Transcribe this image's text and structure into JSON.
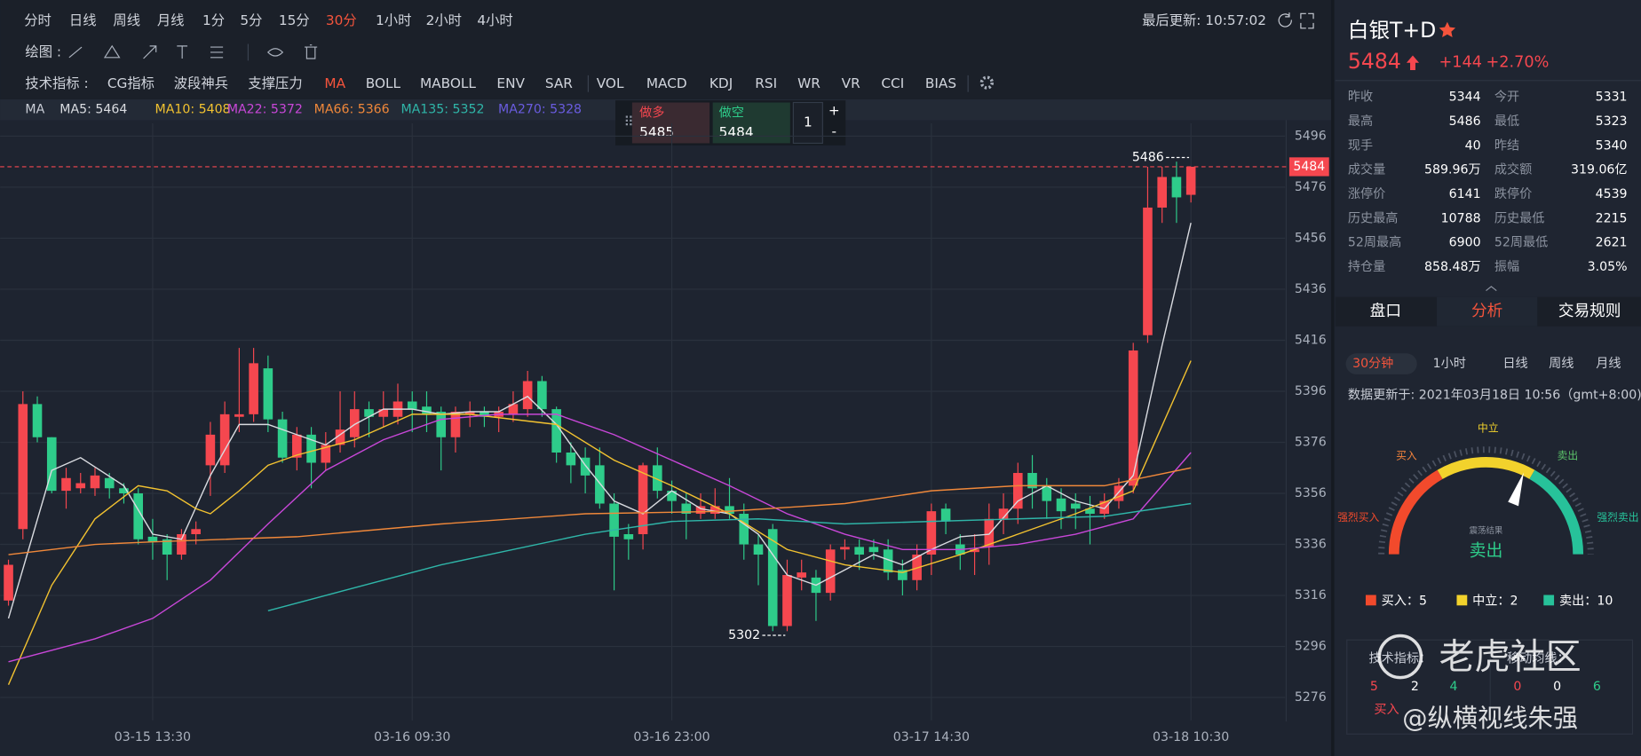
{
  "toolbar": {
    "periods": [
      "分时",
      "日线",
      "周线",
      "月线",
      "1分",
      "5分",
      "15分",
      "30分",
      "1小时",
      "2小时",
      "4小时"
    ],
    "last_update": "最后更新: 10:57:02",
    "draw_label": "绘图 :",
    "indicator_label": "技术指标 :",
    "indicators": [
      "CG指标",
      "波段神兵",
      "支撑压力",
      "MA",
      "BOLL",
      "MABOLL",
      "ENV",
      "SAR",
      "VOL",
      "MACD",
      "KDJ",
      "RSI",
      "WR",
      "VR",
      "CCI",
      "BIAS"
    ]
  },
  "trade": {
    "long_label": "做多",
    "long_price": "5485",
    "short_label": "做空",
    "short_price": "5484",
    "qty": "1",
    "plus": "+",
    "minus": "-"
  },
  "chart_data": {
    "type": "candlestick",
    "ma_label": "MA",
    "categories": [
      null,
      null,
      null,
      null,
      null,
      null,
      null,
      null,
      null,
      null,
      "03-15 13:30",
      null,
      null,
      null,
      null,
      null,
      null,
      null,
      null,
      null,
      null,
      null,
      null,
      null,
      null,
      null,
      null,
      null,
      "03-16 09:30",
      null,
      null,
      null,
      null,
      null,
      null,
      null,
      null,
      null,
      null,
      null,
      null,
      null,
      null,
      null,
      null,
      null,
      "03-16 23:00",
      null,
      null,
      null,
      null,
      null,
      null,
      null,
      null,
      null,
      null,
      null,
      null,
      null,
      null,
      null,
      null,
      null,
      "03-17 14:30",
      null,
      null,
      null,
      null,
      null,
      null,
      null,
      null,
      null,
      null,
      null,
      null,
      null,
      null,
      null,
      null,
      null,
      "03-18 10:30"
    ],
    "open": [
      5314,
      5342,
      5391,
      5378,
      5357,
      5358,
      5358,
      5362,
      5358,
      5356,
      5339,
      5338,
      5332,
      5340,
      5367,
      5367,
      5386,
      5387,
      5405,
      5385,
      5370,
      5379,
      5368,
      5375,
      5378,
      5389,
      5386,
      5386,
      5392,
      5390,
      5388,
      5378,
      5387,
      5388,
      5386,
      5387,
      5389,
      5400,
      5389,
      5372,
      5370,
      5367,
      5352,
      5340,
      5340,
      5367,
      5357,
      5352,
      5348,
      5348,
      5351,
      5348,
      5336,
      5342,
      5304,
      5323,
      5323,
      5317,
      5334,
      5335,
      5335,
      5334,
      5326,
      5322,
      5332,
      5350,
      5336,
      5333,
      5335,
      5346,
      5350,
      5364,
      5359,
      5354,
      5352,
      5350,
      5348,
      5353,
      5359,
      5418,
      5468,
      5480,
      5473
    ],
    "high": [
      5330,
      5396,
      5394,
      5378,
      5366,
      5364,
      5366,
      5364,
      5360,
      5358,
      5346,
      5340,
      5342,
      5345,
      5384,
      5392,
      5413,
      5413,
      5410,
      5388,
      5382,
      5382,
      5380,
      5396,
      5396,
      5392,
      5396,
      5399,
      5396,
      5396,
      5390,
      5390,
      5392,
      5390,
      5390,
      5396,
      5404,
      5402,
      5390,
      5376,
      5374,
      5374,
      5356,
      5344,
      5368,
      5374,
      5361,
      5356,
      5356,
      5358,
      5362,
      5352,
      5340,
      5344,
      5330,
      5330,
      5326,
      5336,
      5338,
      5338,
      5338,
      5338,
      5330,
      5336,
      5352,
      5352,
      5340,
      5340,
      5352,
      5356,
      5368,
      5371,
      5362,
      5358,
      5356,
      5355,
      5356,
      5362,
      5415,
      5484,
      5484,
      5486,
      5484
    ],
    "low": [
      5312,
      5338,
      5376,
      5356,
      5350,
      5356,
      5355,
      5354,
      5352,
      5336,
      5330,
      5322,
      5330,
      5336,
      5355,
      5364,
      5380,
      5384,
      5380,
      5368,
      5365,
      5358,
      5365,
      5372,
      5374,
      5378,
      5382,
      5383,
      5380,
      5380,
      5365,
      5372,
      5382,
      5382,
      5380,
      5384,
      5386,
      5386,
      5368,
      5360,
      5356,
      5350,
      5318,
      5330,
      5334,
      5354,
      5348,
      5338,
      5346,
      5346,
      5346,
      5330,
      5320,
      5302,
      5302,
      5318,
      5306,
      5314,
      5330,
      5326,
      5330,
      5322,
      5316,
      5318,
      5324,
      5340,
      5326,
      5324,
      5328,
      5340,
      5344,
      5350,
      5346,
      5342,
      5342,
      5336,
      5346,
      5350,
      5356,
      5415,
      5462,
      5462,
      5470
    ],
    "close": [
      5328,
      5391,
      5378,
      5357,
      5362,
      5360,
      5363,
      5358,
      5356,
      5338,
      5337,
      5332,
      5340,
      5342,
      5379,
      5387,
      5387,
      5407,
      5385,
      5370,
      5379,
      5368,
      5375,
      5381,
      5389,
      5386,
      5389,
      5392,
      5389,
      5387,
      5378,
      5388,
      5388,
      5386,
      5388,
      5391,
      5400,
      5389,
      5372,
      5367,
      5363,
      5352,
      5339,
      5338,
      5367,
      5357,
      5353,
      5348,
      5351,
      5351,
      5348,
      5336,
      5332,
      5304,
      5324,
      5325,
      5317,
      5334,
      5335,
      5332,
      5333,
      5325,
      5322,
      5332,
      5349,
      5345,
      5332,
      5334,
      5346,
      5350,
      5364,
      5358,
      5353,
      5349,
      5350,
      5348,
      5353,
      5359,
      5412,
      5468,
      5480,
      5472,
      5484
    ],
    "up_color": "#f5474f",
    "down_color": "#2ecc8a",
    "lines": [
      {
        "name": "MA5: 5464",
        "color": "#d9dbe0",
        "x": [
          0,
          3,
          5,
          8,
          10,
          12,
          14,
          16,
          18,
          20,
          22,
          24,
          26,
          28,
          30,
          32,
          34,
          36,
          38,
          40,
          42,
          44,
          46,
          48,
          50,
          52,
          54,
          56,
          58,
          60,
          62,
          64,
          66,
          68,
          70,
          72,
          74,
          76,
          78,
          80,
          82
        ],
        "values": [
          5307,
          5365,
          5370,
          5359,
          5340,
          5338,
          5363,
          5383,
          5383,
          5379,
          5375,
          5383,
          5389,
          5389,
          5387,
          5388,
          5388,
          5394,
          5383,
          5367,
          5353,
          5348,
          5357,
          5350,
          5348,
          5340,
          5324,
          5320,
          5326,
          5332,
          5328,
          5334,
          5339,
          5340,
          5353,
          5359,
          5353,
          5350,
          5363,
          5414,
          5462
        ]
      },
      {
        "name": "MA10: 5408",
        "color": "#f2c230",
        "x": [
          0,
          3,
          6,
          9,
          11,
          13,
          14,
          16,
          18,
          20,
          24,
          28,
          32,
          35,
          38,
          42,
          46,
          50,
          54,
          58,
          62,
          66,
          70,
          74,
          78,
          82
        ],
        "values": [
          5281,
          5320,
          5346,
          5359,
          5357,
          5350,
          5348,
          5357,
          5367,
          5371,
          5377,
          5387,
          5387,
          5385,
          5383,
          5369,
          5359,
          5348,
          5334,
          5328,
          5325,
          5332,
          5340,
          5348,
          5357,
          5408
        ]
      },
      {
        "name": "MA22: 5372",
        "color": "#c847d8",
        "x": [
          0,
          6,
          10,
          14,
          18,
          22,
          26,
          30,
          34,
          38,
          42,
          46,
          50,
          54,
          58,
          62,
          66,
          70,
          74,
          78,
          82
        ],
        "values": [
          5290,
          5299,
          5307,
          5322,
          5344,
          5365,
          5377,
          5385,
          5387,
          5387,
          5379,
          5369,
          5359,
          5348,
          5340,
          5334,
          5334,
          5336,
          5340,
          5346,
          5372
        ]
      },
      {
        "name": "MA66: 5366",
        "color": "#f0883a",
        "x": [
          0,
          6,
          10,
          20,
          30,
          40,
          50,
          58,
          64,
          70,
          76,
          82
        ],
        "values": [
          5332,
          5336,
          5337,
          5339,
          5344,
          5348,
          5349,
          5352,
          5357,
          5359,
          5359,
          5366
        ]
      },
      {
        "name": "MA135: 5352",
        "color": "#2fb5a8",
        "x": [
          18,
          30,
          40,
          46,
          52,
          58,
          64,
          70,
          76,
          82
        ],
        "values": [
          5310,
          5328,
          5340,
          5345,
          5346,
          5344,
          5345,
          5346,
          5347,
          5352
        ]
      },
      {
        "name": "MA270: 5328",
        "color": "#6a5ce0"
      }
    ],
    "ylim": [
      5267,
      5501
    ],
    "yticks": [
      5276,
      5296,
      5316,
      5336,
      5356,
      5376,
      5396,
      5416,
      5436,
      5456,
      5476,
      5496
    ],
    "grid": true,
    "last_price": 5484,
    "high_label": 5486,
    "low_label": 5302
  },
  "quote": {
    "name": "白银T+D",
    "price": 5484,
    "change": "+144",
    "change_pct": "+2.70%",
    "stats": [
      [
        "昨收",
        "5344",
        "今开",
        "5331"
      ],
      [
        "最高",
        "5486",
        "最低",
        "5323"
      ],
      [
        "现手",
        "40",
        "昨结",
        "5340"
      ],
      [
        "成交量",
        "589.96万",
        "成交额",
        "319.06亿"
      ],
      [
        "涨停价",
        "6141",
        "跌停价",
        "4539"
      ],
      [
        "历史最高",
        "10788",
        "历史最低",
        "2215"
      ],
      [
        "52周最高",
        "6900",
        "52周最低",
        "2621"
      ],
      [
        "持仓量",
        "858.48万",
        "振幅",
        "3.05%"
      ]
    ]
  },
  "tabs": [
    "盘口",
    "分析",
    "交易规则"
  ],
  "analysis": {
    "periods": [
      "30分钟",
      "1小时",
      "日线",
      "周线",
      "月线"
    ],
    "updated": "数据更新于: 2021年03月18日 10:56（gmt+8:00)",
    "gauge_labels": [
      "强烈买入",
      "买入",
      "中立",
      "卖出",
      "强烈卖出"
    ],
    "gauge_caption": "震荡结果",
    "gauge_result": "卖出",
    "counts": [
      "买入：5",
      "中立：2",
      "卖出：10"
    ],
    "tech_label": "技术指标：",
    "ma_label": "移动均线：",
    "tech_numbers": [
      "5",
      "2",
      "4"
    ],
    "ma_numbers": [
      "0",
      "0",
      "6"
    ],
    "bottom_label": "买入"
  },
  "watermark": {
    "brand": "老虎社区",
    "author": "@纵横视线朱强"
  }
}
